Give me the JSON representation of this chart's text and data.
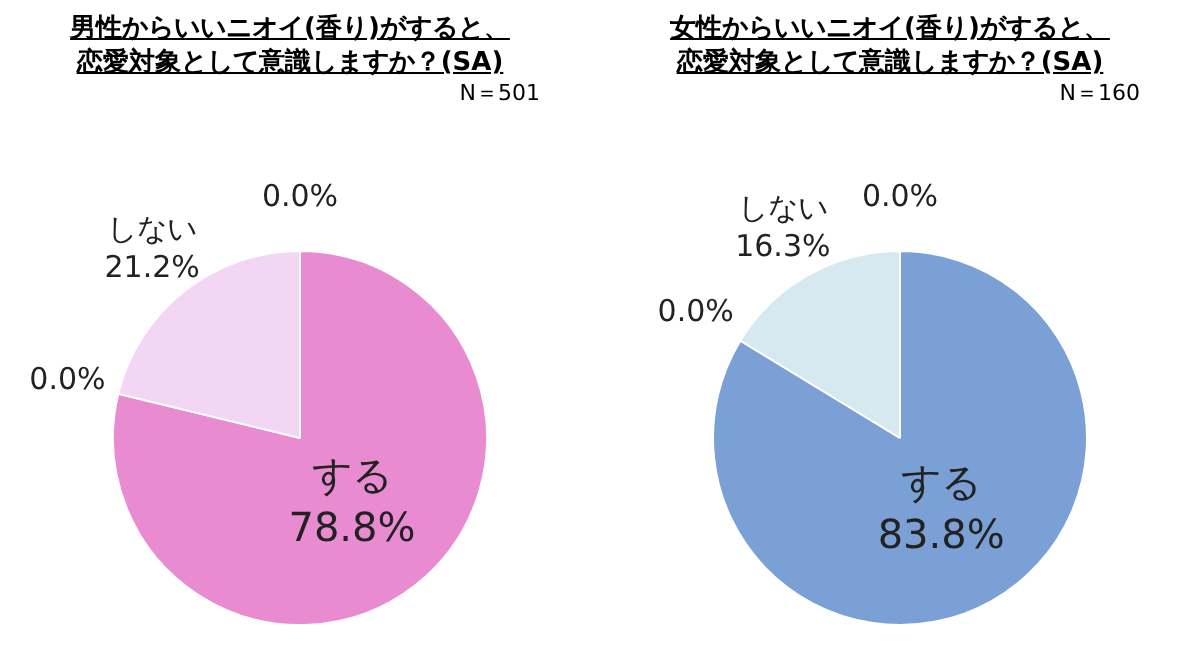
{
  "chart_data": [
    {
      "type": "pie",
      "title": "男性からいいニオイ(香り)がすると、恋愛対象として意識しますか？(SA)",
      "subtitle": "N＝501",
      "categories": [
        "する",
        null,
        "しない",
        null
      ],
      "values": [
        78.8,
        0,
        21.2,
        0
      ],
      "value_labels": [
        "78.8%",
        "0.0%",
        "21.2%",
        "0.0%"
      ],
      "colors": [
        "#e98bd0",
        "#e98bd0",
        "#f3d6f3",
        "#f3d6f3"
      ]
    },
    {
      "type": "pie",
      "title": "女性からいいニオイ(香り)がすると、恋愛対象として意識しますか？(SA)",
      "subtitle": "N＝160",
      "categories": [
        "する",
        null,
        "しない",
        null
      ],
      "values": [
        83.8,
        0,
        16.3,
        0
      ],
      "value_labels": [
        "83.8%",
        "0.0%",
        "16.3%",
        "0.0%"
      ],
      "colors": [
        "#7aa0d6",
        "#7aa0d6",
        "#d6e8f0",
        "#d6e8f0"
      ]
    }
  ]
}
